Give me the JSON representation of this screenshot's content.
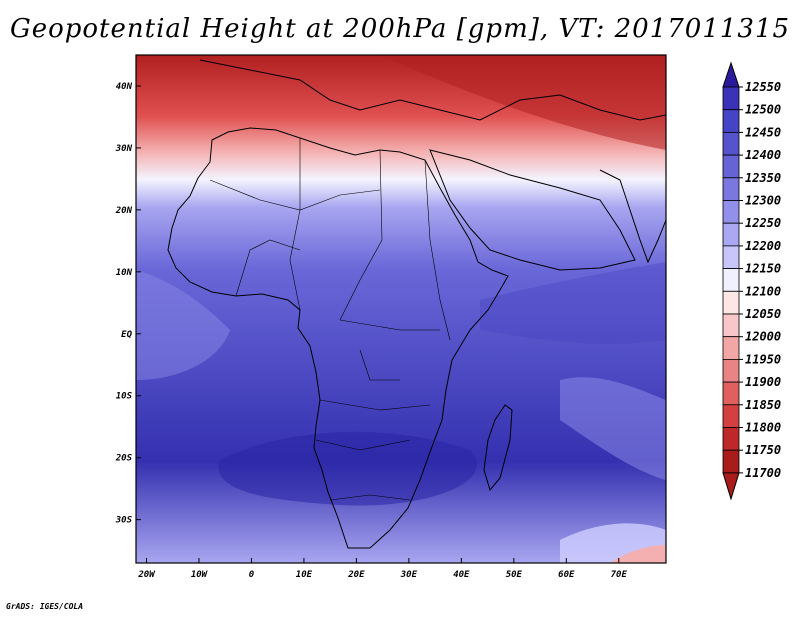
{
  "title": "Geopotential Height at 200hPa [gpm], VT: 2017011315",
  "credit": "GrADS: IGES/COLA",
  "map": {
    "lon_ticks": [
      "20W",
      "10W",
      "0",
      "10E",
      "20E",
      "30E",
      "40E",
      "50E",
      "60E",
      "70E"
    ],
    "lat_ticks": [
      "40N",
      "30N",
      "20N",
      "10N",
      "EQ",
      "10S",
      "20S",
      "30S"
    ],
    "lon_range": [
      -22,
      79
    ],
    "lat_range": [
      -37,
      45
    ]
  },
  "colorbar": {
    "levels": [
      "12550",
      "12500",
      "12450",
      "12400",
      "12350",
      "12300",
      "12250",
      "12200",
      "12150",
      "12100",
      "12050",
      "12000",
      "11950",
      "11900",
      "11850",
      "11800",
      "11750",
      "11700"
    ],
    "colors": [
      "#2a1a9c",
      "#3a32b8",
      "#4544c4",
      "#5554cc",
      "#6564d6",
      "#7a78e0",
      "#9290ea",
      "#aaa8f2",
      "#c8c6f8",
      "#f0f0ff",
      "#fde6e6",
      "#f8c8c8",
      "#f2a6a6",
      "#ea8484",
      "#e06060",
      "#d44040",
      "#bf2828",
      "#a81c1c"
    ]
  },
  "palette": {
    "deep_red": "#b02020",
    "red": "#e05050",
    "pink": "#f4b0b0",
    "white": "#f4f4ff",
    "light_blue": "#a8a6f0",
    "mid_blue": "#6a68d8",
    "deep_blue": "#3430b0"
  }
}
